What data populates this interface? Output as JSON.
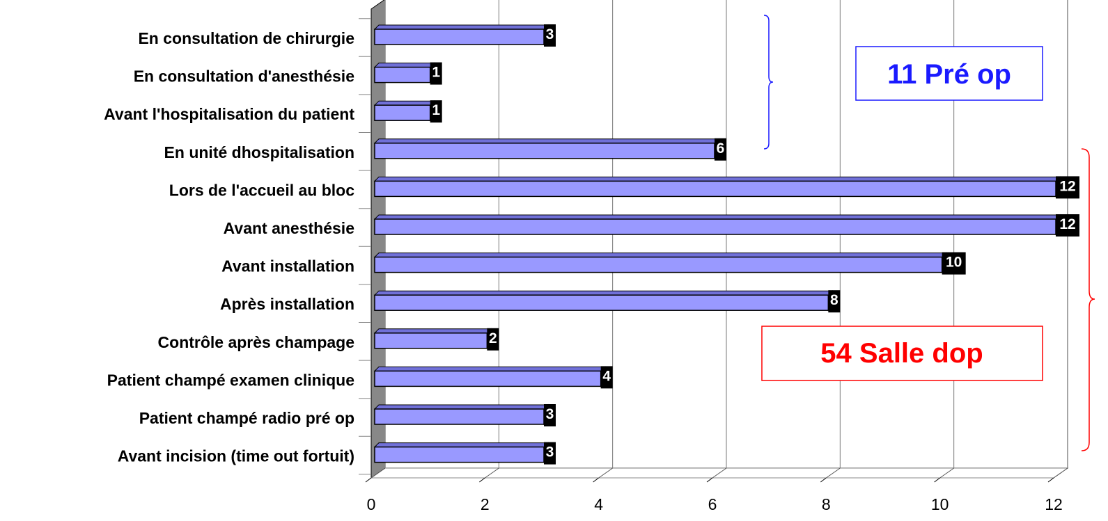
{
  "chart_data": {
    "type": "bar",
    "orientation": "horizontal",
    "categories": [
      "En consultation de chirurgie",
      "En consultation d'anesthésie",
      "Avant l'hospitalisation du patient",
      "En unité d\u0019hospitalisation",
      "Lors de l'accueil au bloc",
      "Avant anesthésie",
      "Avant installation",
      "Après installation",
      "Contrôle après champage",
      "Patient champé examen clinique",
      "Patient champé radio pré op",
      "Avant incision (time out fortuit)"
    ],
    "values": [
      3,
      1,
      1,
      6,
      12,
      12,
      10,
      8,
      2,
      4,
      3,
      3
    ],
    "value_labels": [
      "3",
      "1",
      "1",
      "6",
      "12",
      "12",
      "10",
      "8",
      "2",
      "4",
      "3",
      "3"
    ],
    "xlim": [
      0,
      12
    ],
    "xticks": [
      "0",
      "2",
      "4",
      "6",
      "8",
      "10",
      "12"
    ],
    "grid": "vertical",
    "style": "3d",
    "bar_color": "#9999ff",
    "annotations": [
      {
        "text": "11 Pré op",
        "color": "#1a1aff",
        "groups": "first 4 categories"
      },
      {
        "text": "54 Salle d\u0019op",
        "color": "#ff0000",
        "groups": "last 8 categories"
      }
    ]
  }
}
